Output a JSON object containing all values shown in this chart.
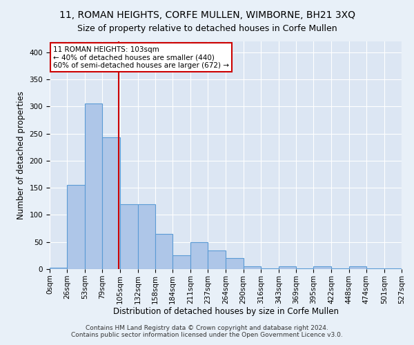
{
  "title": "11, ROMAN HEIGHTS, CORFE MULLEN, WIMBORNE, BH21 3XQ",
  "subtitle": "Size of property relative to detached houses in Corfe Mullen",
  "xlabel": "Distribution of detached houses by size in Corfe Mullen",
  "ylabel": "Number of detached properties",
  "footer_line1": "Contains HM Land Registry data © Crown copyright and database right 2024.",
  "footer_line2": "Contains public sector information licensed under the Open Government Licence v3.0.",
  "bar_edges": [
    0,
    26,
    53,
    79,
    105,
    132,
    158,
    184,
    211,
    237,
    264,
    290,
    316,
    343,
    369,
    395,
    422,
    448,
    474,
    501,
    527
  ],
  "bar_heights": [
    2,
    155,
    305,
    243,
    120,
    120,
    65,
    25,
    50,
    35,
    20,
    5,
    1,
    5,
    1,
    5,
    1,
    5,
    1,
    1
  ],
  "bar_color": "#aec6e8",
  "bar_edge_color": "#5b9bd5",
  "vline_x": 103,
  "vline_color": "#cc0000",
  "annotation_line1": "11 ROMAN HEIGHTS: 103sqm",
  "annotation_line2": "← 40% of detached houses are smaller (440)",
  "annotation_line3": "60% of semi-detached houses are larger (672) →",
  "annotation_box_color": "#ffffff",
  "annotation_box_edge_color": "#cc0000",
  "ylim": [
    0,
    420
  ],
  "yticks": [
    0,
    50,
    100,
    150,
    200,
    250,
    300,
    350,
    400
  ],
  "bg_color": "#e8f0f8",
  "plot_bg_color": "#dce6f3",
  "title_fontsize": 10,
  "subtitle_fontsize": 9,
  "tick_fontsize": 7.5,
  "label_fontsize": 8.5,
  "footer_fontsize": 6.5
}
